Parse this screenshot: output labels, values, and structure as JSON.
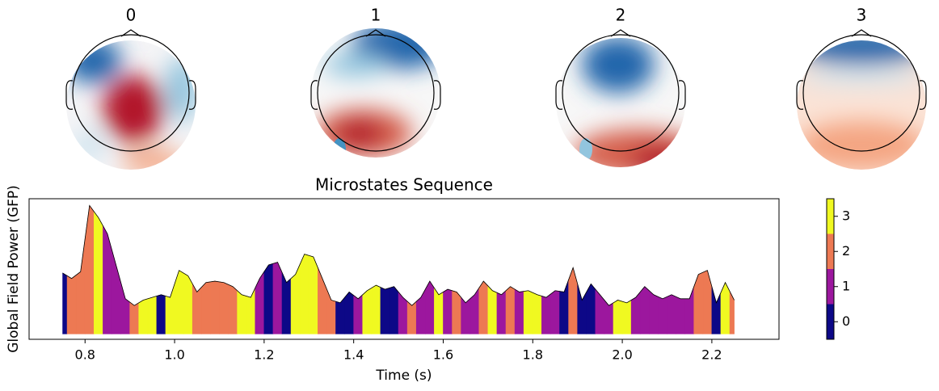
{
  "chart_data": {
    "type": "area",
    "title": "Microstates Sequence",
    "xlabel": "Time (s)",
    "ylabel": "Global Field Power (GFP)",
    "xlim": [
      0.675,
      2.35
    ],
    "ylim": [
      -4,
      100
    ],
    "xticks": [
      {
        "value": 0.8,
        "label": "0.8"
      },
      {
        "value": 1.0,
        "label": "1.0"
      },
      {
        "value": 1.2,
        "label": "1.2"
      },
      {
        "value": 1.4,
        "label": "1.4"
      },
      {
        "value": 1.6,
        "label": "1.6"
      },
      {
        "value": 1.8,
        "label": "1.8"
      },
      {
        "value": 2.0,
        "label": "2.0"
      },
      {
        "value": 2.2,
        "label": "2.2"
      }
    ],
    "x": [
      0.75,
      0.77,
      0.79,
      0.81,
      0.83,
      0.85,
      0.87,
      0.89,
      0.91,
      0.93,
      0.95,
      0.97,
      0.99,
      1.01,
      1.03,
      1.05,
      1.07,
      1.09,
      1.11,
      1.13,
      1.15,
      1.17,
      1.19,
      1.21,
      1.23,
      1.25,
      1.27,
      1.29,
      1.31,
      1.33,
      1.35,
      1.37,
      1.39,
      1.41,
      1.43,
      1.45,
      1.47,
      1.49,
      1.51,
      1.53,
      1.55,
      1.57,
      1.59,
      1.61,
      1.63,
      1.65,
      1.67,
      1.69,
      1.71,
      1.73,
      1.75,
      1.77,
      1.79,
      1.81,
      1.83,
      1.85,
      1.87,
      1.89,
      1.91,
      1.93,
      1.95,
      1.97,
      1.99,
      2.01,
      2.03,
      2.05,
      2.07,
      2.09,
      2.11,
      2.13,
      2.15,
      2.17,
      2.19,
      2.21,
      2.23,
      2.25
    ],
    "values": [
      45,
      41,
      46,
      95,
      86,
      74,
      50,
      26,
      21,
      25,
      27,
      29,
      27,
      47,
      43,
      31,
      38,
      39,
      38,
      35,
      29,
      27,
      41,
      51,
      53,
      38,
      44,
      59,
      57,
      41,
      25,
      23,
      31,
      26,
      32,
      36,
      33,
      35,
      27,
      21,
      27,
      39,
      29,
      33,
      31,
      23,
      29,
      39,
      32,
      29,
      35,
      31,
      32,
      29,
      27,
      32,
      31,
      49,
      25,
      37,
      29,
      21,
      25,
      23,
      27,
      35,
      29,
      26,
      29,
      26,
      26,
      44,
      47,
      23,
      38,
      25
    ],
    "states": [
      0,
      2,
      2,
      2,
      3,
      1,
      1,
      1,
      2,
      3,
      3,
      0,
      3,
      3,
      3,
      2,
      2,
      2,
      2,
      2,
      3,
      3,
      1,
      0,
      1,
      0,
      3,
      3,
      3,
      2,
      2,
      0,
      0,
      1,
      3,
      3,
      0,
      0,
      1,
      2,
      1,
      1,
      3,
      1,
      2,
      1,
      1,
      2,
      3,
      1,
      2,
      1,
      3,
      3,
      1,
      1,
      0,
      2,
      0,
      0,
      1,
      1,
      3,
      3,
      1,
      1,
      1,
      1,
      1,
      1,
      1,
      2,
      2,
      0,
      3,
      2
    ],
    "colorbar": {
      "lim": [
        -0.5,
        3.5
      ],
      "ticks": [
        0,
        1,
        2,
        3
      ],
      "colors": [
        "#0d0887",
        "#9c179e",
        "#ed7953",
        "#f0f921"
      ]
    },
    "maps": [
      {
        "title": "0"
      },
      {
        "title": "1"
      },
      {
        "title": "2"
      },
      {
        "title": "3"
      }
    ]
  }
}
